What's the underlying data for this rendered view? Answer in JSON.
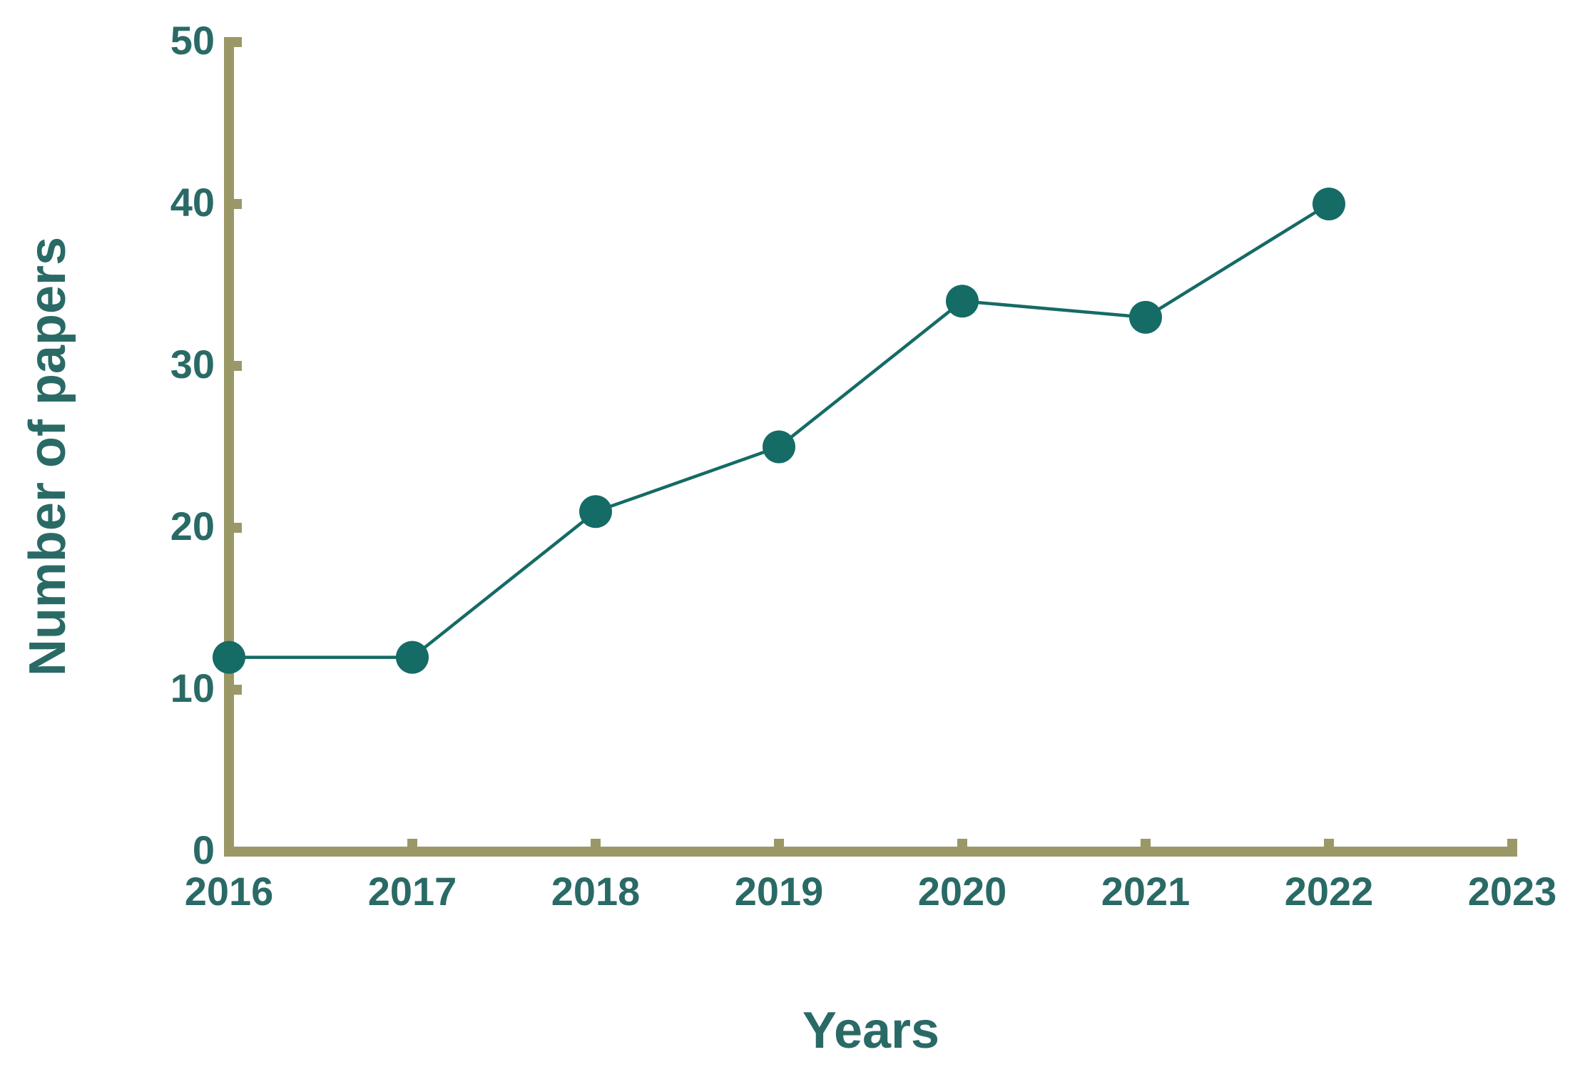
{
  "chart_data": {
    "type": "line",
    "x_label": "Years",
    "y_label": "Number of papers",
    "x": [
      2016,
      2017,
      2018,
      2019,
      2020,
      2021,
      2022
    ],
    "values": [
      12,
      12,
      21,
      25,
      34,
      33,
      40
    ],
    "color": "#156b66",
    "axis_color": "#9a9866",
    "text_color": "#2a6a66",
    "xlim": [
      2016,
      2023
    ],
    "xticks": [
      2016,
      2017,
      2018,
      2019,
      2020,
      2021,
      2022,
      2023
    ],
    "ylim": [
      0,
      50
    ],
    "yticks": [
      0,
      10,
      20,
      30,
      40,
      50
    ],
    "grid": false
  }
}
